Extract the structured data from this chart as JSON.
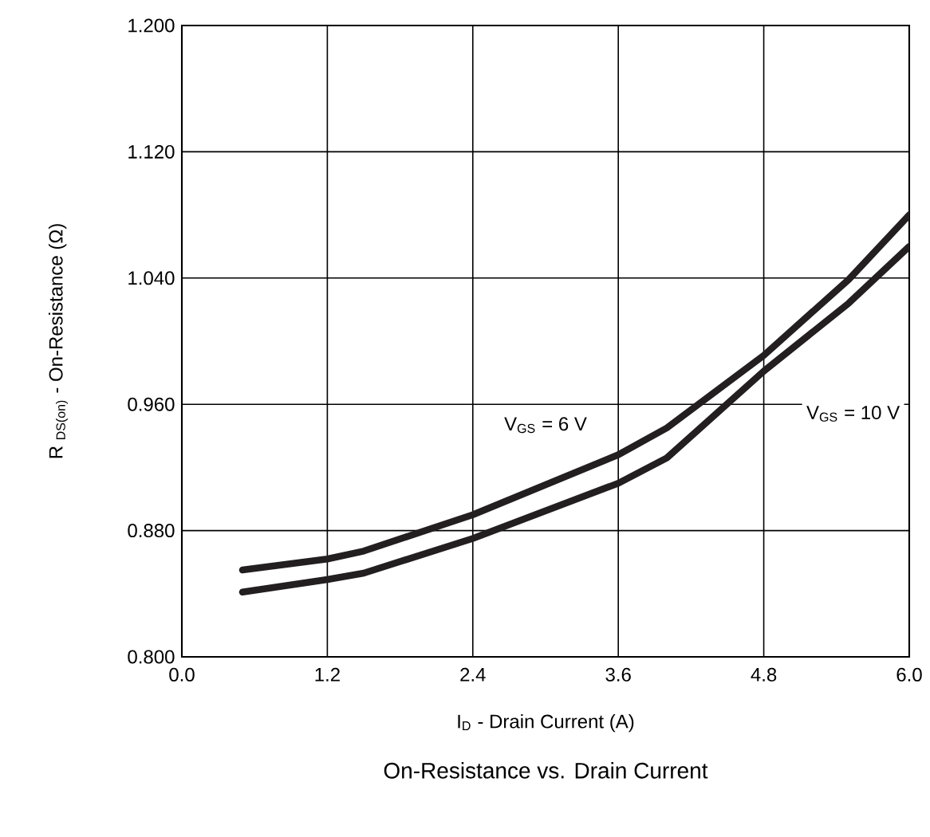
{
  "chart_data": {
    "type": "line",
    "title": "On-Resistance vs. Drain Current",
    "xlabel": "I$_{D}$ - Drain Current (A)",
    "ylabel": "R $_{DS(on)}$ - On-Resistance (Ω)",
    "xlim": [
      0,
      6
    ],
    "ylim": [
      0.8,
      1.2
    ],
    "xticks": [
      {
        "value": 0,
        "label": "0.0"
      },
      {
        "value": 1.2,
        "label": "1.2"
      },
      {
        "value": 2.4,
        "label": "2.4"
      },
      {
        "value": 3.6,
        "label": "3.6"
      },
      {
        "value": 4.8,
        "label": "4.8"
      },
      {
        "value": 6,
        "label": "6.0"
      }
    ],
    "yticks": [
      {
        "value": 0.8,
        "label": "0.800"
      },
      {
        "value": 0.88,
        "label": "0.880"
      },
      {
        "value": 0.96,
        "label": "0.960"
      },
      {
        "value": 1.04,
        "label": "1.040"
      },
      {
        "value": 1.12,
        "label": "1.120"
      },
      {
        "value": 1.2,
        "label": "1.200"
      }
    ],
    "grid": true,
    "legend": false,
    "marker": "none",
    "line_style": "solid",
    "x": [
      0.5,
      1.2,
      1.5,
      2.4,
      3.6,
      4.0,
      4.8,
      5.5,
      6.0
    ],
    "series": [
      {
        "name": "V$_{GS}$ = 6 V",
        "color": "#231f20",
        "values": [
          0.855,
          0.862,
          0.867,
          0.89,
          0.928,
          0.945,
          0.991,
          1.039,
          1.08
        ]
      },
      {
        "name": "V$_{GS}$ = 10 V",
        "color": "#231f20",
        "values": [
          0.841,
          0.849,
          0.853,
          0.875,
          0.91,
          0.926,
          0.981,
          1.024,
          1.06
        ]
      }
    ]
  }
}
